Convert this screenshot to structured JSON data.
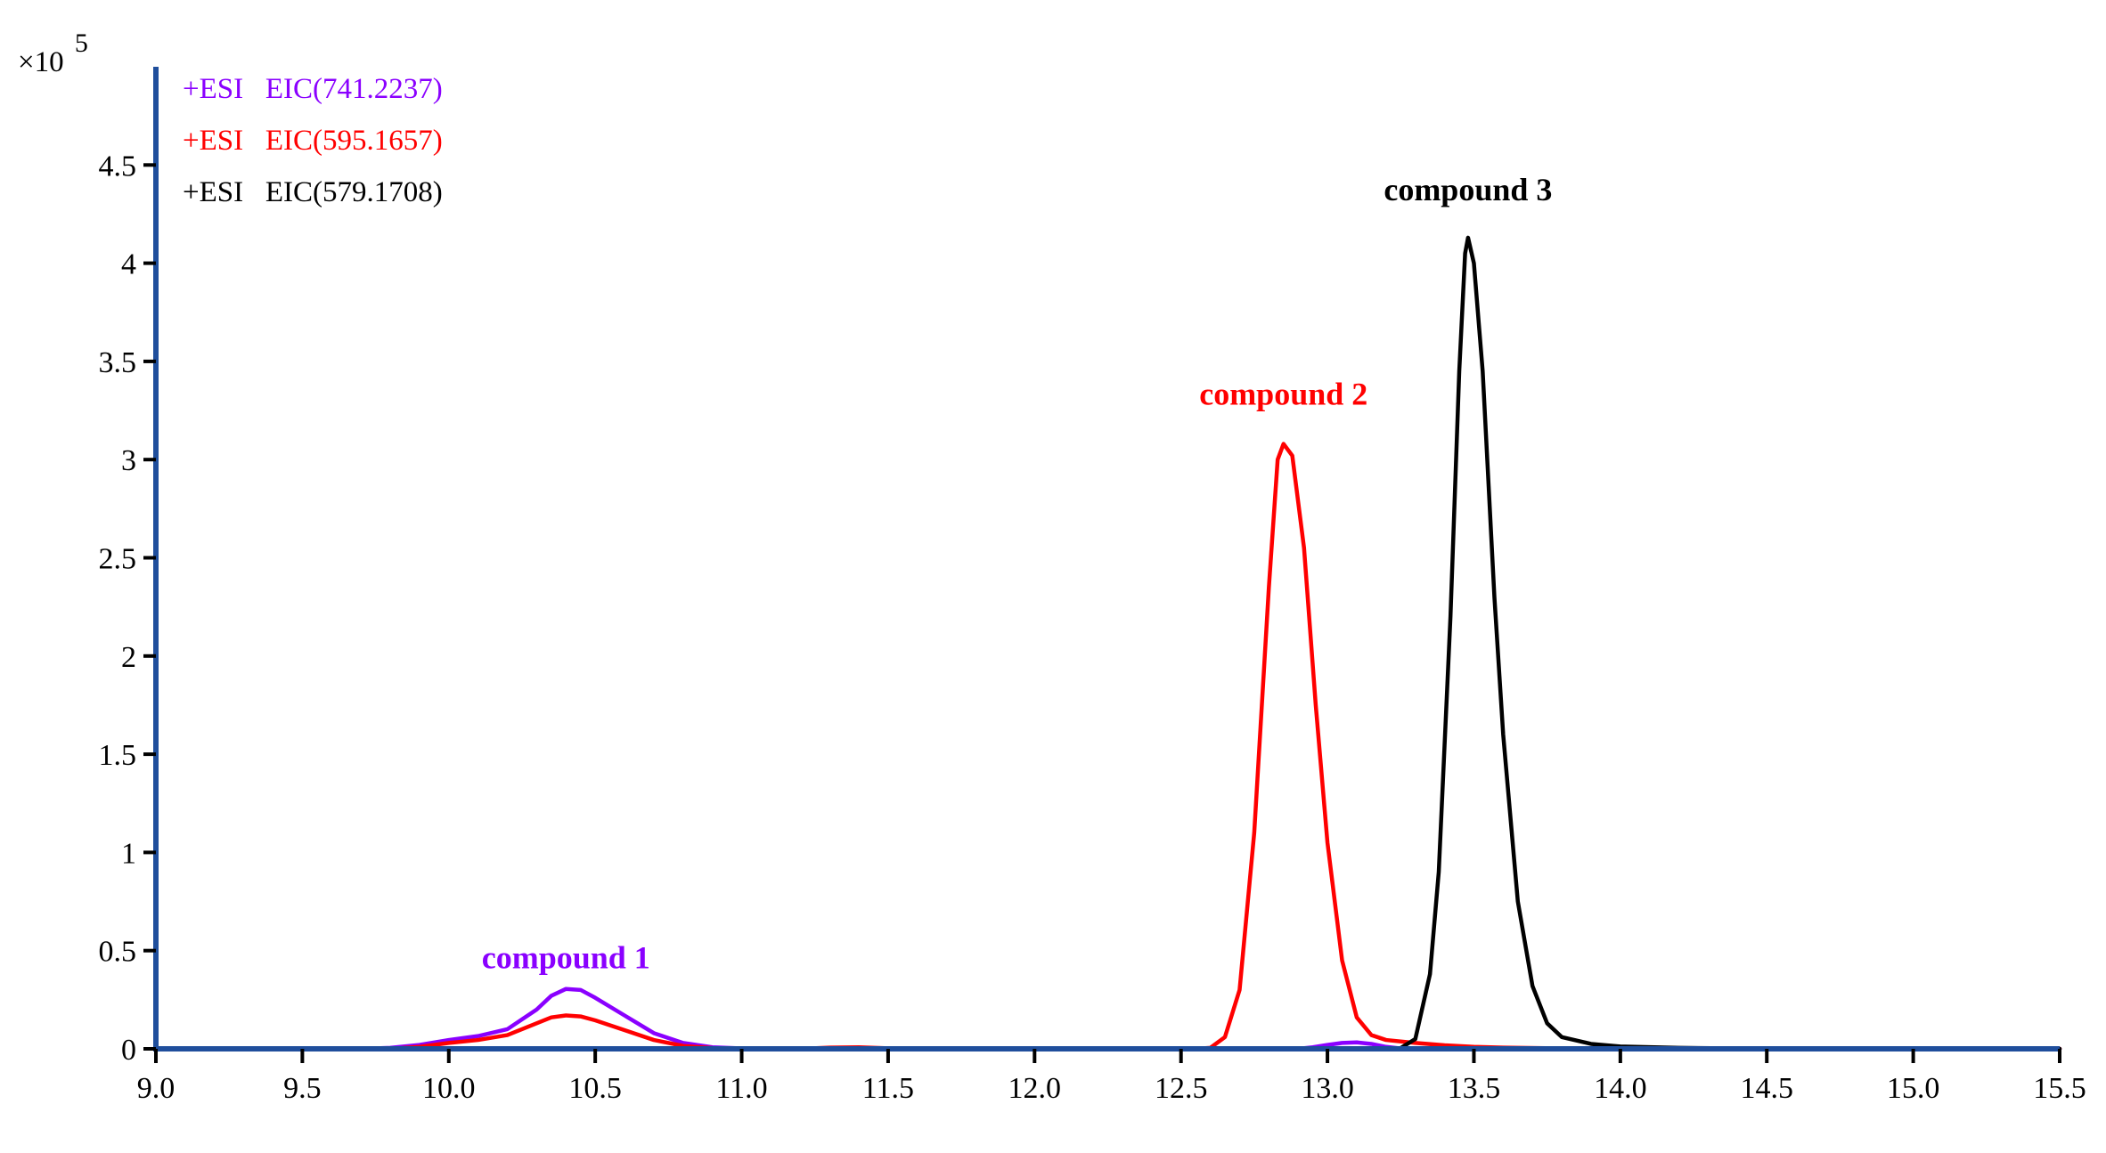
{
  "chart_data": {
    "type": "line",
    "y_multiplier_label": "×10",
    "y_multiplier_exponent": "5",
    "xlim": [
      9.0,
      15.5
    ],
    "ylim": [
      0,
      5.0
    ],
    "x_ticks": [
      9.0,
      9.5,
      10.0,
      10.5,
      11.0,
      11.5,
      12.0,
      12.5,
      13.0,
      13.5,
      14.0,
      14.5,
      15.0,
      15.5
    ],
    "x_tick_labels": [
      "9.0",
      "9.5",
      "10.0",
      "10.5",
      "11.0",
      "11.5",
      "12.0",
      "12.5",
      "13.0",
      "13.5",
      "14.0",
      "14.5",
      "15.0",
      "15.5"
    ],
    "y_ticks": [
      0,
      0.5,
      1,
      1.5,
      2,
      2.5,
      3,
      3.5,
      4,
      4.5
    ],
    "y_tick_labels": [
      "0",
      "0.5",
      "1",
      "1.5",
      "2",
      "2.5",
      "3",
      "3.5",
      "4",
      "4.5"
    ],
    "legend_position": "top-left",
    "grid": false,
    "series": [
      {
        "name": "+ESI   EIC(741.2237)",
        "color": "#8a00ff",
        "points": [
          [
            9.0,
            0
          ],
          [
            9.7,
            0
          ],
          [
            9.8,
            0.005
          ],
          [
            9.9,
            0.02
          ],
          [
            10.0,
            0.045
          ],
          [
            10.1,
            0.065
          ],
          [
            10.2,
            0.1
          ],
          [
            10.3,
            0.2
          ],
          [
            10.35,
            0.27
          ],
          [
            10.4,
            0.305
          ],
          [
            10.45,
            0.3
          ],
          [
            10.5,
            0.26
          ],
          [
            10.6,
            0.17
          ],
          [
            10.7,
            0.08
          ],
          [
            10.8,
            0.03
          ],
          [
            10.9,
            0.008
          ],
          [
            11.0,
            0.002
          ],
          [
            11.2,
            0
          ],
          [
            12.0,
            0
          ],
          [
            12.1,
            0.002
          ],
          [
            12.2,
            0
          ],
          [
            12.9,
            0
          ],
          [
            12.95,
            0.008
          ],
          [
            13.0,
            0.02
          ],
          [
            13.05,
            0.03
          ],
          [
            13.1,
            0.033
          ],
          [
            13.15,
            0.025
          ],
          [
            13.2,
            0.01
          ],
          [
            13.25,
            0.002
          ],
          [
            13.3,
            0
          ],
          [
            15.5,
            0
          ]
        ]
      },
      {
        "name": "+ESI   EIC(595.1657)",
        "color": "#ff0000",
        "points": [
          [
            9.0,
            0
          ],
          [
            9.8,
            0
          ],
          [
            9.9,
            0.01
          ],
          [
            10.0,
            0.03
          ],
          [
            10.1,
            0.045
          ],
          [
            10.2,
            0.07
          ],
          [
            10.3,
            0.13
          ],
          [
            10.35,
            0.16
          ],
          [
            10.4,
            0.17
          ],
          [
            10.45,
            0.165
          ],
          [
            10.5,
            0.145
          ],
          [
            10.6,
            0.095
          ],
          [
            10.7,
            0.045
          ],
          [
            10.8,
            0.015
          ],
          [
            10.9,
            0.004
          ],
          [
            11.0,
            0
          ],
          [
            11.2,
            0
          ],
          [
            11.3,
            0.006
          ],
          [
            11.4,
            0.008
          ],
          [
            11.5,
            0.003
          ],
          [
            11.6,
            0
          ],
          [
            12.55,
            0
          ],
          [
            12.6,
            0.005
          ],
          [
            12.65,
            0.06
          ],
          [
            12.7,
            0.3
          ],
          [
            12.75,
            1.1
          ],
          [
            12.8,
            2.35
          ],
          [
            12.83,
            3.0
          ],
          [
            12.85,
            3.08
          ],
          [
            12.88,
            3.02
          ],
          [
            12.92,
            2.55
          ],
          [
            12.96,
            1.75
          ],
          [
            13.0,
            1.05
          ],
          [
            13.05,
            0.45
          ],
          [
            13.1,
            0.16
          ],
          [
            13.15,
            0.07
          ],
          [
            13.2,
            0.045
          ],
          [
            13.3,
            0.03
          ],
          [
            13.4,
            0.018
          ],
          [
            13.5,
            0.01
          ],
          [
            13.6,
            0.006
          ],
          [
            13.8,
            0.002
          ],
          [
            14.0,
            0
          ],
          [
            15.5,
            0
          ]
        ]
      },
      {
        "name": "+ESI   EIC(579.1708)",
        "color": "#000000",
        "points": [
          [
            9.0,
            0
          ],
          [
            13.2,
            0
          ],
          [
            13.25,
            0.004
          ],
          [
            13.3,
            0.05
          ],
          [
            13.35,
            0.38
          ],
          [
            13.38,
            0.9
          ],
          [
            13.42,
            2.2
          ],
          [
            13.45,
            3.45
          ],
          [
            13.47,
            4.05
          ],
          [
            13.48,
            4.13
          ],
          [
            13.5,
            4.0
          ],
          [
            13.53,
            3.45
          ],
          [
            13.57,
            2.3
          ],
          [
            13.6,
            1.6
          ],
          [
            13.65,
            0.75
          ],
          [
            13.7,
            0.32
          ],
          [
            13.75,
            0.13
          ],
          [
            13.8,
            0.06
          ],
          [
            13.9,
            0.025
          ],
          [
            14.0,
            0.012
          ],
          [
            14.2,
            0.005
          ],
          [
            14.5,
            0.001
          ],
          [
            15.5,
            0
          ]
        ]
      }
    ],
    "annotations": [
      {
        "text": "compound 1",
        "x": 10.4,
        "y": 0.41,
        "color": "#8a00ff"
      },
      {
        "text": "compound 2",
        "x": 12.85,
        "y": 3.28,
        "color": "#ff0000"
      },
      {
        "text": "compound 3",
        "x": 13.48,
        "y": 4.32,
        "color": "#000000"
      }
    ]
  }
}
